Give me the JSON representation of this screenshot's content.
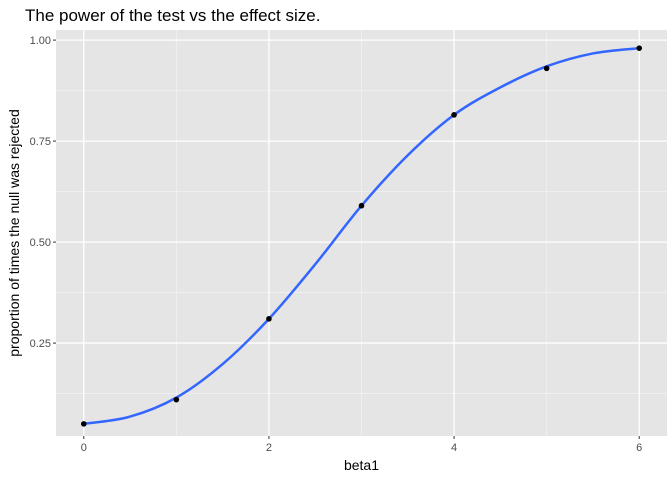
{
  "chart_data": {
    "type": "scatter",
    "title": "The power of the test vs the effect size.",
    "xlabel": "beta1",
    "ylabel": "proportion of times the null was rejected",
    "xlim": [
      -0.3,
      6.3
    ],
    "ylim": [
      0.02,
      1.025
    ],
    "x_ticks": [
      0,
      2,
      4,
      6
    ],
    "x_tick_labels": [
      "0",
      "2",
      "4",
      "6"
    ],
    "x_minor_ticks": [
      1,
      3,
      5
    ],
    "y_ticks": [
      0.25,
      0.5,
      0.75,
      1.0
    ],
    "y_tick_labels": [
      "0.25",
      "0.50",
      "0.75",
      "1.00"
    ],
    "y_minor_ticks": [
      0.125,
      0.375,
      0.625,
      0.875
    ],
    "grid": true,
    "legend": "none",
    "points": {
      "x": [
        0,
        1,
        2,
        3,
        4,
        5,
        6
      ],
      "y": [
        0.05,
        0.11,
        0.31,
        0.59,
        0.815,
        0.93,
        0.98
      ]
    },
    "smooth_line": {
      "x": [
        0,
        0.5,
        1,
        1.5,
        2,
        2.5,
        3,
        3.5,
        4,
        4.5,
        5,
        5.5,
        6
      ],
      "y": [
        0.05,
        0.068,
        0.115,
        0.198,
        0.31,
        0.445,
        0.59,
        0.715,
        0.815,
        0.883,
        0.935,
        0.967,
        0.98
      ]
    },
    "colors": {
      "panel_background": "#E5E5E5",
      "grid_major": "#FFFFFF",
      "grid_minor": "#F2F2F2",
      "point": "#000000",
      "line": "#3366FF",
      "tick_mark": "#333333",
      "tick_label": "#4D4D4D"
    }
  }
}
